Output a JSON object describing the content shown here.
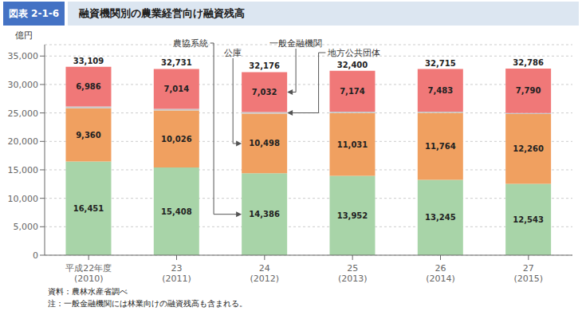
{
  "chart_data": {
    "type": "bar",
    "stacked": true,
    "title": "融資機関別の農業経営向け融資残高",
    "subtitle": "図表 2-1-6",
    "ylabel": "億円",
    "categories": [
      "平成22年度\n(2010)",
      "23\n(2011)",
      "24\n(2012)",
      "25\n(2013)",
      "26\n(2014)",
      "27\n(2015)"
    ],
    "series": [
      {
        "name": "農協系統",
        "color": "#a8d4a8",
        "values": [
          16451,
          15408,
          14386,
          13952,
          13245,
          12543
        ],
        "value_labels": [
          "16,451",
          "15,408",
          "14,386",
          "13,952",
          "13,245",
          "12,543"
        ],
        "data_labels": true
      },
      {
        "name": "公庫",
        "color": "#f0a060",
        "values": [
          9360,
          10026,
          10498,
          11031,
          11764,
          12260
        ],
        "value_labels": [
          "9,360",
          "10,026",
          "10,498",
          "11,031",
          "11,764",
          "12,260"
        ],
        "data_labels": true
      },
      {
        "name": "地方公共団体",
        "color": "#c8c8c8",
        "values": [
          312,
          283,
          260,
          243,
          223,
          193
        ],
        "data_labels": false
      },
      {
        "name": "一般金融機関",
        "color": "#f07878",
        "values": [
          6986,
          7014,
          7032,
          7174,
          7483,
          7790
        ],
        "value_labels": [
          "6,986",
          "7,014",
          "7,032",
          "7,174",
          "7,483",
          "7,790"
        ],
        "data_labels": true
      }
    ],
    "totals": [
      33109,
      32731,
      32176,
      32400,
      32715,
      32786
    ],
    "total_labels": [
      "33,109",
      "32,731",
      "32,176",
      "32,400",
      "32,715",
      "32,786"
    ],
    "ylim": [
      0,
      37000
    ],
    "yticks": [
      0,
      {
        "value": 5000,
        "label": "5,000"
      },
      {
        "value": 10000,
        "label": "10,000"
      },
      {
        "value": 15000,
        "label": "15,000"
      },
      {
        "value": 20000,
        "label": "20,000"
      },
      {
        "value": 25000,
        "label": "25,000"
      },
      {
        "value": 30000,
        "label": "30,000"
      },
      {
        "value": 35000,
        "label": "35,000"
      }
    ],
    "grid": true,
    "annotations": [
      {
        "text": "農協系統",
        "series": "農協系統",
        "category": "24\n(2012)"
      },
      {
        "text": "公庫",
        "series": "公庫",
        "category": "24\n(2012)"
      },
      {
        "text": "地方公共団体",
        "series": "地方公共団体",
        "category": "24\n(2012)"
      },
      {
        "text": "一般金融機関",
        "series": "一般金融機関",
        "category": "24\n(2012)"
      }
    ],
    "source": "資料：農林水産省調べ",
    "note": "注：一般金融機関には林業向けの融資残高も含まれる。"
  }
}
